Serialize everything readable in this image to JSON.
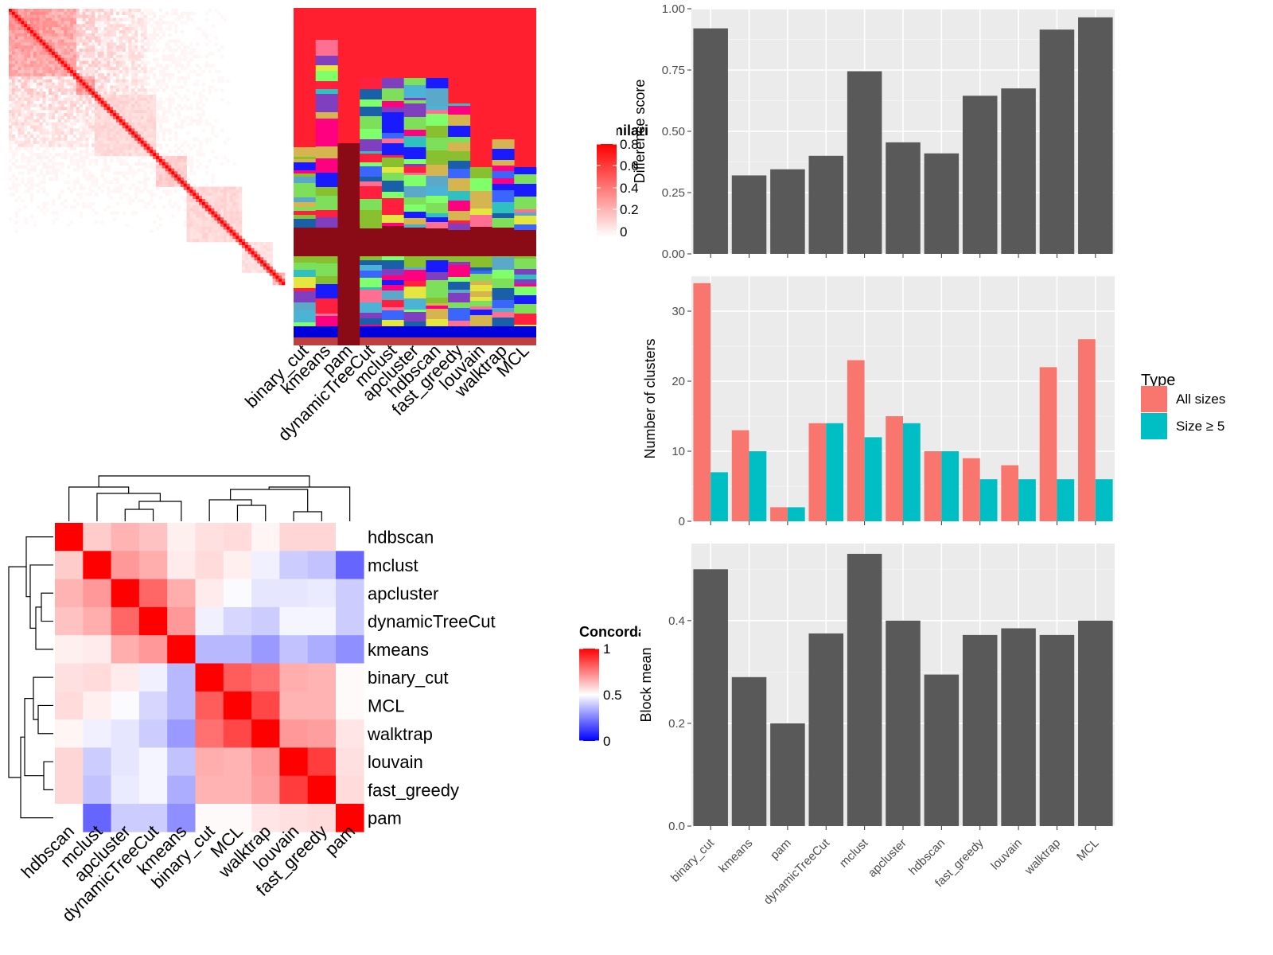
{
  "methods_order": [
    "binary_cut",
    "kmeans",
    "pam",
    "dynamicTreeCut",
    "mclust",
    "apcluster",
    "hdbscan",
    "fast_greedy",
    "louvain",
    "walktrap",
    "MCL"
  ],
  "similarity_legend": {
    "title": "Similarity",
    "ticks": [
      "0.8",
      "0.6",
      "0.4",
      "0.2",
      "0"
    ]
  },
  "concordance_legend": {
    "title": "Concordance",
    "ticks": [
      "1",
      "0.5",
      "0"
    ]
  },
  "type_legend": {
    "title": "Type",
    "entries": [
      "All sizes",
      "Size ≥ 5"
    ],
    "colors": [
      "#F8766D",
      "#00BFC4"
    ]
  },
  "chart_data": [
    {
      "type": "heatmap",
      "name": "similarity-matrix",
      "legend": "Similarity",
      "range": [
        0,
        0.8
      ],
      "colors": [
        "#ffffff",
        "#ff0000"
      ]
    },
    {
      "type": "heatmap",
      "name": "cluster-membership",
      "columns": [
        "binary_cut",
        "kmeans",
        "pam",
        "dynamicTreeCut",
        "mclust",
        "apcluster",
        "hdbscan",
        "fast_greedy",
        "louvain",
        "walktrap",
        "MCL"
      ]
    },
    {
      "type": "heatmap",
      "name": "concordance",
      "legend": "Concordance",
      "range": [
        0,
        1
      ],
      "rows": [
        "hdbscan",
        "mclust",
        "apcluster",
        "dynamicTreeCut",
        "kmeans",
        "binary_cut",
        "MCL",
        "walktrap",
        "louvain",
        "fast_greedy",
        "pam"
      ],
      "columns": [
        "hdbscan",
        "mclust",
        "apcluster",
        "dynamicTreeCut",
        "kmeans",
        "binary_cut",
        "MCL",
        "walktrap",
        "louvain",
        "fast_greedy",
        "pam"
      ],
      "values": [
        [
          1.0,
          0.6,
          0.65,
          0.62,
          0.53,
          0.56,
          0.57,
          0.52,
          0.58,
          0.58,
          0.5
        ],
        [
          0.6,
          1.0,
          0.7,
          0.66,
          0.54,
          0.57,
          0.53,
          0.47,
          0.4,
          0.38,
          0.2
        ],
        [
          0.65,
          0.7,
          1.0,
          0.8,
          0.66,
          0.54,
          0.49,
          0.45,
          0.45,
          0.46,
          0.4
        ],
        [
          0.62,
          0.66,
          0.8,
          1.0,
          0.7,
          0.47,
          0.42,
          0.4,
          0.48,
          0.48,
          0.4
        ],
        [
          0.53,
          0.54,
          0.66,
          0.7,
          1.0,
          0.36,
          0.36,
          0.3,
          0.38,
          0.34,
          0.28
        ],
        [
          0.56,
          0.57,
          0.54,
          0.47,
          0.36,
          1.0,
          0.82,
          0.78,
          0.66,
          0.65,
          0.51
        ],
        [
          0.57,
          0.53,
          0.49,
          0.42,
          0.36,
          0.82,
          1.0,
          0.86,
          0.65,
          0.65,
          0.51
        ],
        [
          0.52,
          0.47,
          0.45,
          0.4,
          0.3,
          0.78,
          0.86,
          1.0,
          0.7,
          0.69,
          0.55
        ],
        [
          0.58,
          0.4,
          0.45,
          0.48,
          0.38,
          0.66,
          0.65,
          0.7,
          1.0,
          0.88,
          0.56
        ],
        [
          0.58,
          0.38,
          0.46,
          0.48,
          0.34,
          0.65,
          0.65,
          0.69,
          0.88,
          1.0,
          0.57
        ],
        [
          0.5,
          0.2,
          0.4,
          0.4,
          0.28,
          0.51,
          0.51,
          0.55,
          0.56,
          0.57,
          1.0
        ]
      ]
    },
    {
      "type": "bar",
      "name": "difference-score",
      "categories": [
        "binary_cut",
        "kmeans",
        "pam",
        "dynamicTreeCut",
        "mclust",
        "apcluster",
        "hdbscan",
        "fast_greedy",
        "louvain",
        "walktrap",
        "MCL"
      ],
      "values": [
        0.92,
        0.32,
        0.345,
        0.4,
        0.745,
        0.455,
        0.41,
        0.645,
        0.675,
        0.915,
        0.965
      ],
      "ylabel": "Difference score",
      "ylim": [
        0,
        1.0
      ],
      "yticks": [
        "0.00",
        "0.25",
        "0.50",
        "0.75",
        "1.00"
      ]
    },
    {
      "type": "bar",
      "name": "number-of-clusters",
      "categories": [
        "binary_cut",
        "kmeans",
        "pam",
        "dynamicTreeCut",
        "mclust",
        "apcluster",
        "hdbscan",
        "fast_greedy",
        "louvain",
        "walktrap",
        "MCL"
      ],
      "series": [
        {
          "name": "All sizes",
          "values": [
            34,
            13,
            2,
            14,
            23,
            15,
            10,
            9,
            8,
            22,
            26
          ]
        },
        {
          "name": "Size ≥ 5",
          "values": [
            7,
            10,
            2,
            14,
            12,
            14,
            10,
            6,
            6,
            6,
            6
          ]
        }
      ],
      "ylabel": "Number of clusters",
      "ylim": [
        0,
        35
      ],
      "yticks": [
        "0",
        "10",
        "20",
        "30"
      ]
    },
    {
      "type": "bar",
      "name": "block-mean",
      "categories": [
        "binary_cut",
        "kmeans",
        "pam",
        "dynamicTreeCut",
        "mclust",
        "apcluster",
        "hdbscan",
        "fast_greedy",
        "louvain",
        "walktrap",
        "MCL"
      ],
      "values": [
        0.5,
        0.29,
        0.2,
        0.375,
        0.53,
        0.4,
        0.295,
        0.372,
        0.385,
        0.372,
        0.4
      ],
      "ylabel": "Block mean",
      "ylim": [
        0,
        0.55
      ],
      "yticks": [
        "0.0",
        "0.2",
        "0.4"
      ]
    }
  ]
}
